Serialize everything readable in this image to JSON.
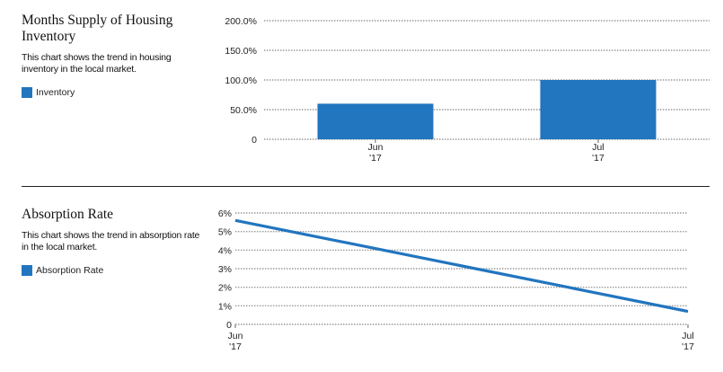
{
  "charts": [
    {
      "title": "Months Supply of Housing Inventory",
      "description": "This chart shows the trend in housing inventory in the local market.",
      "legend": "Inventory"
    },
    {
      "title": "Absorption Rate",
      "description": "This chart shows the trend in absorption rate in the local market.",
      "legend": "Absorption Rate"
    }
  ],
  "colors": {
    "series": "#2275bf",
    "grid": "#9a9a9a",
    "divider": "#222222"
  },
  "chart_data": [
    {
      "type": "bar",
      "categories": [
        "Jun '17",
        "Jul '17"
      ],
      "category_lines": [
        [
          "Jun",
          "'17"
        ],
        [
          "Jul",
          "'17"
        ]
      ],
      "series": [
        {
          "name": "Inventory",
          "values": [
            60,
            100
          ]
        }
      ],
      "ylim": [
        0,
        200
      ],
      "yticks": [
        0,
        50,
        100,
        150,
        200
      ],
      "ytick_labels": [
        "0",
        "50.0%",
        "100.0%",
        "150.0%",
        "200.0%"
      ],
      "grid": true
    },
    {
      "type": "line",
      "categories": [
        "Jun '17",
        "Jul '17"
      ],
      "category_lines": [
        [
          "Jun",
          "'17"
        ],
        [
          "Jul",
          "'17"
        ]
      ],
      "series": [
        {
          "name": "Absorption Rate",
          "values": [
            5.6,
            0.7
          ]
        }
      ],
      "ylim": [
        0,
        6
      ],
      "yticks": [
        0,
        1,
        2,
        3,
        4,
        5,
        6
      ],
      "ytick_labels": [
        "0",
        "1%",
        "2%",
        "3%",
        "4%",
        "5%",
        "6%"
      ],
      "grid": true
    }
  ]
}
